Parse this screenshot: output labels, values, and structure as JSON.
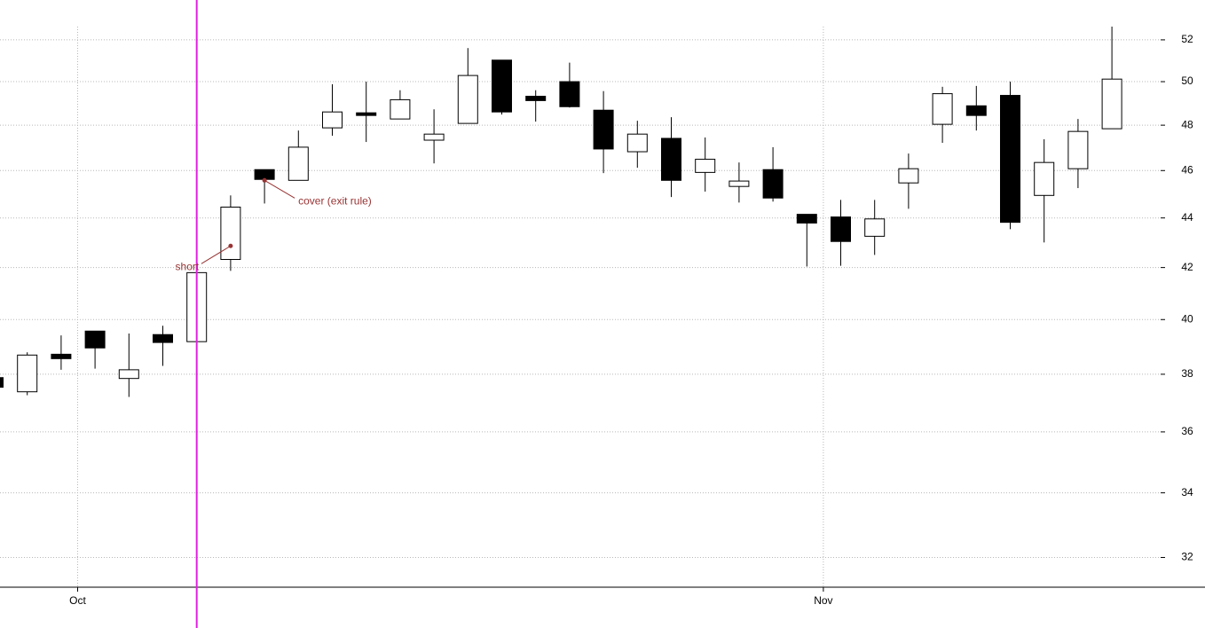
{
  "chart_data": {
    "type": "candlestick",
    "categories": [
      null,
      null,
      null,
      null,
      null,
      null,
      null,
      null,
      null,
      null,
      null,
      null,
      null,
      null,
      null,
      null,
      null,
      null,
      null,
      null,
      null,
      null,
      null,
      null,
      null,
      null,
      null,
      null,
      null,
      null,
      null,
      null,
      null,
      null
    ],
    "open": [
      37.88,
      37.38,
      38.72,
      39.57,
      37.85,
      39.44,
      39.18,
      42.32,
      46.04,
      45.58,
      47.88,
      48.56,
      48.28,
      47.33,
      48.08,
      51.02,
      49.32,
      50.0,
      48.68,
      46.82,
      47.41,
      45.92,
      45.32,
      46.04,
      44.15,
      44.04,
      43.25,
      45.47,
      48.04,
      48.88,
      49.36,
      44.94,
      46.08,
      47.84
    ],
    "high": [
      37.9,
      38.79,
      39.41,
      39.57,
      39.48,
      39.77,
      41.8,
      44.94,
      46.04,
      47.76,
      49.88,
      50.0,
      49.6,
      48.72,
      51.6,
      51.02,
      49.6,
      50.9,
      49.56,
      48.2,
      48.36,
      47.45,
      46.35,
      47.02,
      44.15,
      44.75,
      44.75,
      46.74,
      49.76,
      49.8,
      50.0,
      47.37,
      48.28,
      52.65
    ],
    "low": [
      37.5,
      37.26,
      38.16,
      38.2,
      37.2,
      38.3,
      39.18,
      41.87,
      44.6,
      45.58,
      47.53,
      47.25,
      48.28,
      46.31,
      48.08,
      48.48,
      48.16,
      48.8,
      45.89,
      46.12,
      44.87,
      45.1,
      44.64,
      44.68,
      42.04,
      42.07,
      42.5,
      44.38,
      47.21,
      47.76,
      43.54,
      43.0,
      45.25,
      47.84
    ],
    "close": [
      37.54,
      38.69,
      38.56,
      38.95,
      38.16,
      39.15,
      41.8,
      44.45,
      45.62,
      47.02,
      48.6,
      48.44,
      49.16,
      47.6,
      50.29,
      48.6,
      49.12,
      48.84,
      46.94,
      47.6,
      45.58,
      46.49,
      45.55,
      44.83,
      43.79,
      43.04,
      43.96,
      46.08,
      49.44,
      48.44,
      43.82,
      46.35,
      47.72,
      50.12
    ],
    "up_color": "#ffffff",
    "down_color": "#000000",
    "log_scale": true,
    "grid": true,
    "ylim": [
      31.12,
      53.98
    ],
    "yticks": [
      32,
      34,
      36,
      38,
      40,
      42,
      44,
      46,
      48,
      50,
      52
    ],
    "xticks": [
      {
        "value": 2.5,
        "label": "Oct"
      },
      {
        "value": 24.5,
        "label": "Nov"
      }
    ],
    "marker": {
      "index": 6,
      "color": "#e020e0"
    },
    "annotation_color": "#993333",
    "annotations": [
      {
        "text": "short",
        "index": 7,
        "value": 42.86
      },
      {
        "text": "cover (exit rule)",
        "index": 8,
        "value": 45.58
      }
    ]
  }
}
